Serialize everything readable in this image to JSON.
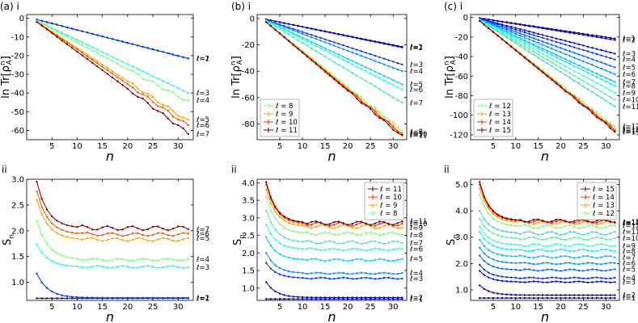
{
  "figure": {
    "panel_labels": [
      "(a) i",
      "(b) i",
      "(c) i",
      "ii",
      "ii",
      "ii"
    ]
  },
  "chart_data": [
    {
      "panel": "(a) i",
      "type": "line",
      "xlabel": "n",
      "ylabel": "ln Tr[ρ_A^n]",
      "xlim": [
        0,
        33
      ],
      "ylim": [
        -65,
        2
      ],
      "xticks": [
        5,
        10,
        15,
        20,
        25,
        30
      ],
      "yticks": [
        0,
        -10,
        -20,
        -30,
        -40,
        -50,
        -60
      ],
      "legend": null,
      "series": [
        {
          "name": "ℓ=1",
          "color": "#00007f",
          "values": [
            -0.69,
            -21.5
          ]
        },
        {
          "name": "ℓ=2",
          "color": "#0036ff",
          "values": [
            -0.69,
            -21.5
          ]
        },
        {
          "name": "ℓ=3",
          "color": "#26ffd3",
          "values": [
            -1.3,
            -40
          ]
        },
        {
          "name": "ℓ=4",
          "color": "#7dff7a",
          "values": [
            -1.4,
            -44.5
          ]
        },
        {
          "name": "ℓ=5",
          "color": "#ffa400",
          "values": [
            -1.8,
            -55
          ]
        },
        {
          "name": "ℓ=6",
          "color": "#ff5700",
          "values": [
            -1.85,
            -57.5
          ]
        },
        {
          "name": "ℓ=7",
          "color": "#7f0000",
          "values": [
            -2.0,
            -61.5
          ]
        }
      ]
    },
    {
      "panel": "(b) i",
      "type": "line",
      "xlabel": "n",
      "ylabel": "ln Tr[ρ_A^n]",
      "xlim": [
        0,
        33
      ],
      "ylim": [
        -92,
        3
      ],
      "xticks": [
        5,
        10,
        15,
        20,
        25,
        30
      ],
      "yticks": [
        0,
        -20,
        -40,
        -60,
        -80
      ],
      "legend": {
        "position": "bottom-left",
        "entries": [
          "ℓ = 8",
          "ℓ = 9",
          "ℓ = 10",
          "ℓ = 11"
        ]
      },
      "series": [
        {
          "name": "ℓ=1",
          "color": "#00007f",
          "values": [
            -0.69,
            -21.5
          ]
        },
        {
          "name": "ℓ=2",
          "color": "#0000d1",
          "values": [
            -0.69,
            -22
          ]
        },
        {
          "name": "ℓ=3",
          "color": "#0036ff",
          "values": [
            -1.2,
            -35
          ]
        },
        {
          "name": "ℓ=4",
          "color": "#0090ff",
          "values": [
            -1.3,
            -40
          ]
        },
        {
          "name": "ℓ=5",
          "color": "#00d4ff",
          "values": [
            -1.6,
            -50
          ]
        },
        {
          "name": "ℓ=6",
          "color": "#29ffce",
          "values": [
            -1.7,
            -54
          ]
        },
        {
          "name": "ℓ=7",
          "color": "#4aebb5",
          "values": [
            -2.0,
            -64
          ]
        },
        {
          "name": "ℓ=8",
          "color": "#7dff7a",
          "values": [
            -2.6,
            -85
          ]
        },
        {
          "name": "ℓ=9",
          "color": "#ffa400",
          "values": [
            -2.7,
            -87
          ]
        },
        {
          "name": "ℓ=10",
          "color": "#ff3000",
          "values": [
            -2.75,
            -88
          ]
        },
        {
          "name": "ℓ=11",
          "color": "#7f0000",
          "values": [
            -2.8,
            -89.5
          ]
        }
      ]
    },
    {
      "panel": "(c) i",
      "type": "line",
      "xlabel": "n",
      "ylabel": "ln Tr[ρ_A^n]",
      "xlim": [
        0,
        33
      ],
      "ylim": [
        -125,
        3
      ],
      "xticks": [
        5,
        10,
        15,
        20,
        25,
        30
      ],
      "yticks": [
        0,
        -20,
        -40,
        -60,
        -80,
        -100,
        -120
      ],
      "legend": {
        "position": "bottom-left",
        "entries": [
          "ℓ = 12",
          "ℓ = 13",
          "ℓ = 14",
          "ℓ = 15"
        ]
      },
      "series": [
        {
          "name": "ℓ=1",
          "color": "#00007f",
          "values": [
            -0.69,
            -21.5
          ]
        },
        {
          "name": "ℓ=2",
          "color": "#0000b8",
          "values": [
            -0.69,
            -23
          ]
        },
        {
          "name": "ℓ=3",
          "color": "#0000f1",
          "values": [
            -1.2,
            -37
          ]
        },
        {
          "name": "ℓ=4",
          "color": "#0030ff",
          "values": [
            -1.4,
            -43
          ]
        },
        {
          "name": "ℓ=5",
          "color": "#0060ff",
          "values": [
            -1.6,
            -51
          ]
        },
        {
          "name": "ℓ=6",
          "color": "#0090ff",
          "values": [
            -1.8,
            -58
          ]
        },
        {
          "name": "ℓ=7",
          "color": "#00c0ff",
          "values": [
            -2.1,
            -66
          ]
        },
        {
          "name": "ℓ=8",
          "color": "#0ef0f0",
          "values": [
            -2.2,
            -70
          ]
        },
        {
          "name": "ℓ=9",
          "color": "#3fffc0",
          "values": [
            -2.4,
            -77
          ]
        },
        {
          "name": "ℓ=10",
          "color": "#64e8a0",
          "values": [
            -2.6,
            -84
          ]
        },
        {
          "name": "ℓ=11",
          "color": "#48d8c8",
          "values": [
            -2.8,
            -91
          ]
        },
        {
          "name": "ℓ=12",
          "color": "#7dff7a",
          "values": [
            -3.5,
            -112
          ]
        },
        {
          "name": "ℓ=13",
          "color": "#ffa400",
          "values": [
            -3.55,
            -114
          ]
        },
        {
          "name": "ℓ=14",
          "color": "#ff3000",
          "values": [
            -3.6,
            -115
          ]
        },
        {
          "name": "ℓ=15",
          "color": "#7f0000",
          "values": [
            -3.62,
            -116.5
          ]
        }
      ]
    },
    {
      "panel": "(a) ii",
      "type": "line",
      "xlabel": "n",
      "ylabel": "S_n",
      "xlim": [
        0,
        33
      ],
      "ylim": [
        0.65,
        3.0
      ],
      "xticks": [
        5,
        10,
        15,
        20,
        25,
        30
      ],
      "yticks": [
        1.0,
        1.5,
        2.0,
        2.5,
        3.0
      ],
      "legend": null,
      "series": [
        {
          "name": "ℓ=1",
          "color": "#00007f",
          "start": 0.69,
          "end": 0.69,
          "dip": 0.0
        },
        {
          "name": "ℓ=2",
          "color": "#0036ff",
          "start": 1.17,
          "end": 0.7,
          "dip": 0.0
        },
        {
          "name": "ℓ=3",
          "color": "#26ffd3",
          "start": 1.74,
          "end": 1.3,
          "dip": 0.02
        },
        {
          "name": "ℓ=4",
          "color": "#7dff7a",
          "start": 2.2,
          "end": 1.44,
          "dip": 0.02
        },
        {
          "name": "ℓ=5",
          "color": "#ffa400",
          "start": 2.6,
          "end": 1.83,
          "dip": 0.03
        },
        {
          "name": "ℓ=6",
          "color": "#ff5700",
          "start": 2.77,
          "end": 1.93,
          "dip": 0.03
        },
        {
          "name": "ℓ=7",
          "color": "#7f0000",
          "start": 2.95,
          "end": 2.05,
          "dip": 0.04
        }
      ]
    },
    {
      "panel": "(b) ii",
      "type": "line",
      "xlabel": "n",
      "ylabel": "S_n",
      "xlim": [
        0,
        33
      ],
      "ylim": [
        0.65,
        4.1
      ],
      "xticks": [
        5,
        10,
        15,
        20,
        25,
        30
      ],
      "yticks": [
        1.0,
        1.5,
        2.0,
        2.5,
        3.0,
        3.5,
        4.0
      ],
      "legend": {
        "position": "top-right",
        "entries": [
          "ℓ = 11",
          "ℓ = 10",
          "ℓ = 9",
          "ℓ = 8"
        ]
      },
      "series": [
        {
          "name": "ℓ=1",
          "color": "#00007f",
          "start": 0.69,
          "end": 0.69,
          "dip": 0.0
        },
        {
          "name": "ℓ=2",
          "color": "#0000d1",
          "start": 1.17,
          "end": 0.73,
          "dip": 0.0
        },
        {
          "name": "ℓ=3",
          "color": "#0036ff",
          "start": 1.72,
          "end": 1.28,
          "dip": 0.02
        },
        {
          "name": "ℓ=4",
          "color": "#0090ff",
          "start": 2.0,
          "end": 1.42,
          "dip": 0.02
        },
        {
          "name": "ℓ=5",
          "color": "#00d4ff",
          "start": 2.45,
          "end": 1.8,
          "dip": 0.03
        },
        {
          "name": "ℓ=6",
          "color": "#29ffce",
          "start": 2.8,
          "end": 2.1,
          "dip": 0.03
        },
        {
          "name": "ℓ=7",
          "color": "#4aebb5",
          "start": 3.2,
          "end": 2.3,
          "dip": 0.04
        },
        {
          "name": "ℓ=8",
          "color": "#7dff7a",
          "start": 3.6,
          "end": 2.55,
          "dip": 0.04
        },
        {
          "name": "ℓ=9",
          "color": "#ffa400",
          "start": 3.8,
          "end": 2.75,
          "dip": 0.05
        },
        {
          "name": "ℓ=10",
          "color": "#ff3000",
          "start": 3.95,
          "end": 2.82,
          "dip": 0.05
        },
        {
          "name": "ℓ=11",
          "color": "#7f0000",
          "start": 4.02,
          "end": 2.85,
          "dip": 0.05
        }
      ]
    },
    {
      "panel": "(c) ii",
      "type": "line",
      "xlabel": "n",
      "ylabel": "S_n",
      "xlim": [
        0,
        33
      ],
      "ylim": [
        0.6,
        5.2
      ],
      "xticks": [
        5,
        10,
        15,
        20,
        25,
        30
      ],
      "yticks": [
        1.0,
        2.0,
        3.0,
        4.0,
        5.0
      ],
      "legend": {
        "position": "top-right",
        "entries": [
          "ℓ = 15",
          "ℓ = 14",
          "ℓ = 13",
          "ℓ = 12"
        ]
      },
      "series": [
        {
          "name": "ℓ=1",
          "color": "#00007f",
          "start": 0.69,
          "end": 0.69,
          "dip": 0.0
        },
        {
          "name": "ℓ=2",
          "color": "#0000b8",
          "start": 1.17,
          "end": 0.8,
          "dip": 0.0
        },
        {
          "name": "ℓ=3",
          "color": "#0000f1",
          "start": 1.72,
          "end": 1.3,
          "dip": 0.02
        },
        {
          "name": "ℓ=4",
          "color": "#0030ff",
          "start": 1.95,
          "end": 1.45,
          "dip": 0.02
        },
        {
          "name": "ℓ=5",
          "color": "#0060ff",
          "start": 2.3,
          "end": 1.75,
          "dip": 0.03
        },
        {
          "name": "ℓ=6",
          "color": "#0090ff",
          "start": 2.6,
          "end": 2.0,
          "dip": 0.03
        },
        {
          "name": "ℓ=7",
          "color": "#00c0ff",
          "start": 2.9,
          "end": 2.25,
          "dip": 0.04
        },
        {
          "name": "ℓ=8",
          "color": "#0ef0f0",
          "start": 3.2,
          "end": 2.5,
          "dip": 0.04
        },
        {
          "name": "ℓ=9",
          "color": "#3fffc0",
          "start": 3.4,
          "end": 2.7,
          "dip": 0.05
        },
        {
          "name": "ℓ=10",
          "color": "#64e8a0",
          "start": 3.7,
          "end": 2.95,
          "dip": 0.05
        },
        {
          "name": "ℓ=11",
          "color": "#48d8c8",
          "start": 4.0,
          "end": 3.15,
          "dip": 0.06
        },
        {
          "name": "ℓ=12",
          "color": "#7dff7a",
          "start": 4.6,
          "end": 3.4,
          "dip": 0.06
        },
        {
          "name": "ℓ=13",
          "color": "#ffa400",
          "start": 4.85,
          "end": 3.55,
          "dip": 0.06
        },
        {
          "name": "ℓ=14",
          "color": "#ff3000",
          "start": 5.0,
          "end": 3.6,
          "dip": 0.06
        },
        {
          "name": "ℓ=15",
          "color": "#7f0000",
          "start": 5.1,
          "end": 3.62,
          "dip": 0.06
        }
      ]
    }
  ]
}
